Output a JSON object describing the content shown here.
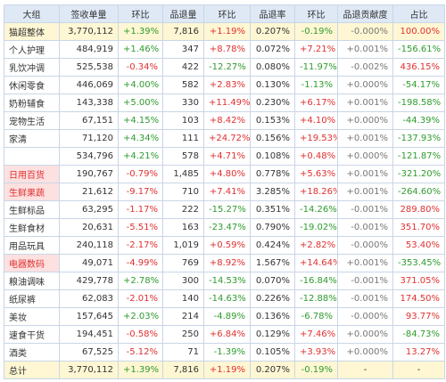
{
  "table": {
    "header": [
      "大组",
      "签收单量",
      "环比",
      "品退量",
      "环比",
      "品退率",
      "环比",
      "品退贡献度",
      "占比"
    ],
    "rows": [
      [
        "猫超整体",
        "3,770,112",
        "+1.39%",
        "7,816",
        "+1.19%",
        "0.207%",
        "-0.19%",
        "-0.000%",
        "100.00%"
      ],
      [
        "个人护理",
        "484,919",
        "+1.46%",
        "347",
        "+8.78%",
        "0.072%",
        "+7.21%",
        "+0.001%",
        "-156.61%"
      ],
      [
        "乳饮冲调",
        "525,538",
        "-0.34%",
        "422",
        "-12.27%",
        "0.080%",
        "-11.97%",
        "-0.002%",
        "436.15%"
      ],
      [
        "休闲零食",
        "446,069",
        "+4.00%",
        "582",
        "+2.83%",
        "0.130%",
        "-1.13%",
        "+0.000%",
        "-54.17%"
      ],
      [
        "奶粉辅食",
        "143,338",
        "+5.00%",
        "330",
        "+11.49%",
        "0.230%",
        "+6.17%",
        "+0.001%",
        "-198.58%"
      ],
      [
        "宠物生活",
        "67,151",
        "+4.15%",
        "103",
        "+8.42%",
        "0.153%",
        "+4.10%",
        "+0.000%",
        "-44.39%"
      ],
      [
        "家清",
        "71,120",
        "+4.34%",
        "111",
        "+24.72%",
        "0.156%",
        "+19.53%",
        "+0.001%",
        "-137.93%"
      ],
      [
        null,
        "534,796",
        "+4.21%",
        "578",
        "+4.71%",
        "0.108%",
        "+0.48%",
        "+0.000%",
        "-121.87%"
      ],
      [
        "日用百货",
        "190,767",
        "-0.79%",
        "1,485",
        "+4.80%",
        "0.778%",
        "+5.63%",
        "+0.001%",
        "-321.20%"
      ],
      [
        "生鲜果蔬",
        "21,612",
        "-9.17%",
        "710",
        "+7.41%",
        "3.285%",
        "+18.26%",
        "+0.001%",
        "-264.60%"
      ],
      [
        "生鲜标品",
        "63,295",
        "-1.17%",
        "222",
        "-15.27%",
        "0.351%",
        "-14.26%",
        "-0.001%",
        "289.80%"
      ],
      [
        "生鲜食材",
        "20,631",
        "-5.51%",
        "163",
        "-23.47%",
        "0.790%",
        "-19.02%",
        "-0.001%",
        "351.70%"
      ],
      [
        "用品玩具",
        "240,118",
        "-2.17%",
        "1,019",
        "+0.59%",
        "0.424%",
        "+2.82%",
        "-0.000%",
        "53.40%"
      ],
      [
        "电器数码",
        "49,071",
        "-4.99%",
        "769",
        "+8.92%",
        "1.567%",
        "+14.64%",
        "+0.001%",
        "-353.45%"
      ],
      [
        "粮油调味",
        "429,778",
        "+2.78%",
        "300",
        "-14.53%",
        "0.070%",
        "-16.84%",
        "-0.001%",
        "371.05%"
      ],
      [
        "纸尿裤",
        "62,083",
        "-2.01%",
        "140",
        "-14.63%",
        "0.226%",
        "-12.88%",
        "-0.001%",
        "174.50%"
      ],
      [
        "美妆",
        "157,645",
        "+2.03%",
        "214",
        "-4.89%",
        "0.136%",
        "-6.78%",
        "-0.000%",
        "93.77%"
      ],
      [
        "速食干货",
        "194,451",
        "-0.58%",
        "250",
        "+6.84%",
        "0.129%",
        "+7.46%",
        "+0.000%",
        "-84.73%"
      ],
      [
        "酒类",
        "67,525",
        "-5.12%",
        "71",
        "-1.39%",
        "0.105%",
        "+3.93%",
        "+0.000%",
        "13.27%"
      ],
      [
        "总计",
        "3,770,112",
        "+1.39%",
        "7,816",
        "+1.19%",
        "0.207%",
        "-0.19%",
        "-",
        "-"
      ]
    ]
  }
}
